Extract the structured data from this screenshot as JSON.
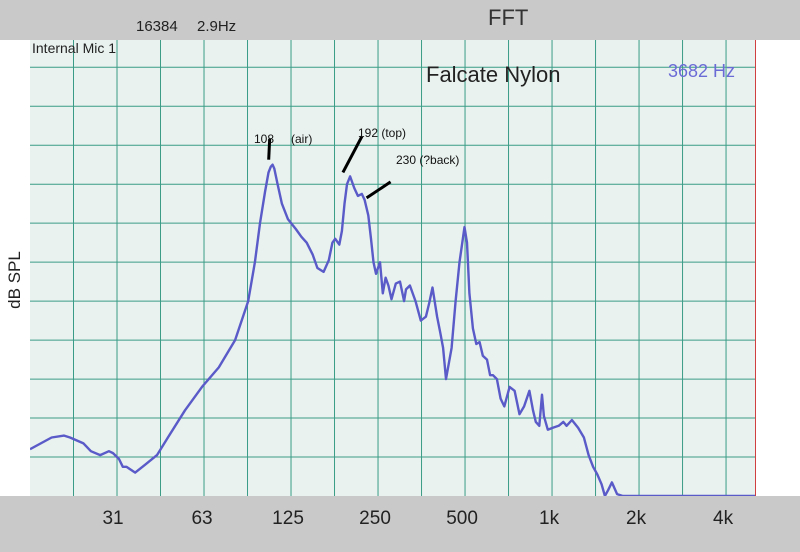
{
  "header": {
    "fft_size": "16384",
    "bin_resolution": "2.9Hz",
    "mode": "FFT"
  },
  "input_label": "Internal Mic 1",
  "freq_readout": "3682 Hz",
  "colors": {
    "trace": "#5a5ac8",
    "plot_bg": "#e9f2ef",
    "grid": "#3a9c86",
    "bars": "#c9c9c9",
    "marker": "#d04040"
  },
  "chart_data": {
    "type": "line",
    "title": "Falcate Nylon",
    "xlabel": "",
    "ylabel": "dB SPL",
    "x_scale": "log",
    "x_ticks": [
      31,
      63,
      125,
      250,
      500,
      1000,
      2000,
      4000
    ],
    "x_tick_labels": [
      "31",
      "63",
      "125",
      "250",
      "500",
      "1k",
      "2k",
      "4k"
    ],
    "xlim": [
      16,
      5200
    ],
    "y_units": "grid divisions from bottom",
    "ylim": [
      0,
      11.7
    ],
    "grid": true,
    "series": [
      {
        "x": [
          16,
          19,
          21,
          22,
          24.5,
          26,
          28,
          30,
          31,
          32.5,
          33.5,
          34.5,
          37,
          40,
          44,
          48,
          55,
          63,
          72,
          82,
          91,
          96,
          100,
          104,
          107,
          109,
          110.5,
          112,
          115,
          119,
          125,
          133,
          139,
          145,
          152,
          158,
          166,
          173,
          178,
          182,
          188,
          192,
          196,
          200,
          205,
          212,
          218,
          225,
          230,
          237,
          242,
          247,
          252,
          260,
          266,
          272,
          278,
          285,
          295,
          305,
          315,
          320,
          330,
          345,
          360,
          375,
          385,
          395,
          410,
          420,
          430,
          440,
          460,
          475,
          490,
          510,
          520,
          530,
          545,
          560,
          575,
          590,
          610,
          625,
          640,
          660,
          680,
          700,
          730,
          760,
          790,
          820,
          855,
          880,
          900,
          925,
          945,
          960,
          990,
          1030,
          1080,
          1120,
          1150,
          1200,
          1260,
          1320,
          1370,
          1420,
          1470,
          1520,
          1560,
          1600,
          1650,
          1720,
          1800,
          2000,
          3000,
          4000,
          5200
        ],
        "y": [
          1.2,
          1.5,
          1.55,
          1.5,
          1.35,
          1.15,
          1.05,
          1.15,
          1.1,
          0.95,
          0.75,
          0.75,
          0.6,
          0.8,
          1.05,
          1.5,
          2.2,
          2.8,
          3.3,
          4.0,
          5.0,
          6.0,
          7.0,
          7.8,
          8.3,
          8.45,
          8.5,
          8.4,
          8.0,
          7.5,
          7.1,
          6.85,
          6.65,
          6.5,
          6.2,
          5.85,
          5.75,
          6.05,
          6.5,
          6.6,
          6.45,
          6.8,
          7.5,
          8.0,
          8.2,
          7.9,
          7.7,
          7.75,
          7.6,
          7.2,
          6.6,
          6.0,
          5.7,
          6.0,
          5.2,
          5.6,
          5.4,
          5.05,
          5.45,
          5.5,
          5.0,
          5.3,
          5.4,
          5.0,
          4.5,
          4.6,
          4.95,
          5.35,
          4.6,
          4.2,
          3.8,
          3.0,
          3.8,
          5.0,
          6.0,
          6.9,
          6.5,
          5.2,
          4.3,
          3.9,
          3.95,
          3.6,
          3.5,
          3.1,
          3.1,
          3.0,
          2.5,
          2.3,
          2.8,
          2.7,
          2.1,
          2.3,
          2.7,
          2.2,
          1.9,
          1.8,
          2.6,
          2.05,
          1.7,
          1.75,
          1.8,
          1.9,
          1.8,
          1.95,
          1.75,
          1.5,
          1.05,
          0.75,
          0.55,
          0.3,
          0.0,
          0.15,
          0.35,
          0.05,
          0.0,
          0.0,
          0.0,
          0.0,
          0.0
        ]
      }
    ],
    "annotations": [
      {
        "text": "108",
        "x": 108,
        "y": 8.5
      },
      {
        "text": "(air)",
        "x": 108,
        "y": 8.5
      },
      {
        "text": "192 (top)",
        "x": 192,
        "y": 8.2
      },
      {
        "text": "230 (?back)",
        "x": 230,
        "y": 7.7
      }
    ]
  }
}
